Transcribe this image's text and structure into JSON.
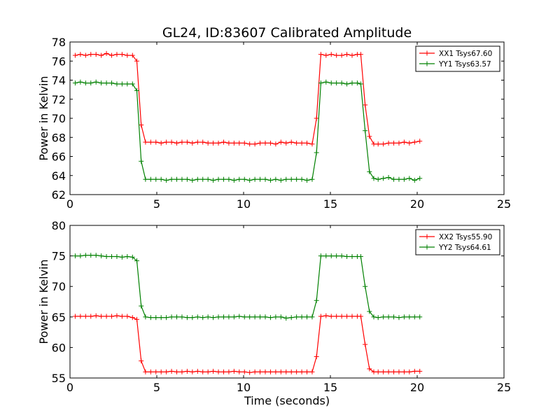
{
  "figure": {
    "title": "GL24, ID:83607 Calibrated Amplitude",
    "xlabel": "Time (seconds)"
  },
  "chart_data": [
    {
      "type": "line",
      "title": "GL24, ID:83607 Calibrated Amplitude",
      "xlabel": "",
      "ylabel": "Power in Kelvin",
      "xlim": [
        0,
        25
      ],
      "ylim": [
        62,
        78
      ],
      "xticks": [
        0,
        5,
        10,
        15,
        20,
        25
      ],
      "yticks": [
        62,
        64,
        66,
        68,
        70,
        72,
        74,
        76,
        78
      ],
      "grid": false,
      "legend_position": "top-right",
      "x": [
        0.3,
        0.6,
        0.9,
        1.2,
        1.5,
        1.8,
        2.1,
        2.4,
        2.7,
        3.0,
        3.3,
        3.6,
        3.85,
        4.1,
        4.35,
        4.65,
        4.95,
        5.25,
        5.55,
        5.85,
        6.15,
        6.45,
        6.75,
        7.05,
        7.35,
        7.65,
        7.95,
        8.25,
        8.55,
        8.85,
        9.15,
        9.45,
        9.75,
        10.05,
        10.35,
        10.65,
        10.95,
        11.25,
        11.55,
        11.85,
        12.15,
        12.45,
        12.75,
        13.05,
        13.35,
        13.65,
        13.95,
        14.2,
        14.45,
        14.75,
        15.05,
        15.35,
        15.65,
        15.95,
        16.25,
        16.55,
        16.75,
        17.0,
        17.25,
        17.5,
        17.75,
        18.05,
        18.35,
        18.65,
        18.95,
        19.25,
        19.55,
        19.85,
        20.15
      ],
      "series": [
        {
          "name": "XX1 Tsys67.60",
          "color": "#ff0000",
          "values": [
            76.6,
            76.7,
            76.6,
            76.7,
            76.7,
            76.6,
            76.8,
            76.6,
            76.7,
            76.7,
            76.6,
            76.6,
            76.0,
            69.3,
            67.5,
            67.5,
            67.5,
            67.4,
            67.5,
            67.5,
            67.4,
            67.5,
            67.5,
            67.4,
            67.5,
            67.5,
            67.4,
            67.4,
            67.4,
            67.5,
            67.4,
            67.4,
            67.4,
            67.4,
            67.3,
            67.3,
            67.4,
            67.4,
            67.4,
            67.3,
            67.5,
            67.4,
            67.5,
            67.4,
            67.4,
            67.4,
            67.3,
            70.0,
            76.7,
            76.6,
            76.7,
            76.6,
            76.6,
            76.7,
            76.6,
            76.7,
            76.7,
            71.4,
            68.1,
            67.3,
            67.3,
            67.3,
            67.4,
            67.4,
            67.4,
            67.5,
            67.4,
            67.5,
            67.6
          ]
        },
        {
          "name": "YY1 Tsys63.57",
          "color": "#008000",
          "values": [
            73.7,
            73.8,
            73.7,
            73.7,
            73.8,
            73.7,
            73.7,
            73.7,
            73.6,
            73.6,
            73.6,
            73.6,
            72.9,
            65.5,
            63.6,
            63.6,
            63.6,
            63.6,
            63.5,
            63.6,
            63.6,
            63.6,
            63.6,
            63.5,
            63.6,
            63.6,
            63.6,
            63.5,
            63.6,
            63.6,
            63.6,
            63.5,
            63.6,
            63.6,
            63.5,
            63.6,
            63.6,
            63.6,
            63.5,
            63.6,
            63.5,
            63.6,
            63.6,
            63.6,
            63.6,
            63.5,
            63.6,
            66.4,
            73.7,
            73.8,
            73.7,
            73.7,
            73.7,
            73.6,
            73.7,
            73.7,
            73.6,
            68.7,
            64.4,
            63.7,
            63.6,
            63.7,
            63.8,
            63.6,
            63.6,
            63.6,
            63.7,
            63.5,
            63.7
          ]
        }
      ]
    },
    {
      "type": "line",
      "title": "",
      "xlabel": "Time (seconds)",
      "ylabel": "Power in Kelvin",
      "xlim": [
        0,
        25
      ],
      "ylim": [
        55,
        80
      ],
      "xticks": [
        0,
        5,
        10,
        15,
        20,
        25
      ],
      "yticks": [
        55,
        60,
        65,
        70,
        75,
        80
      ],
      "grid": false,
      "legend_position": "top-right",
      "x": [
        0.3,
        0.6,
        0.9,
        1.2,
        1.5,
        1.8,
        2.1,
        2.4,
        2.7,
        3.0,
        3.3,
        3.6,
        3.85,
        4.1,
        4.35,
        4.65,
        4.95,
        5.25,
        5.55,
        5.85,
        6.15,
        6.45,
        6.75,
        7.05,
        7.35,
        7.65,
        7.95,
        8.25,
        8.55,
        8.85,
        9.15,
        9.45,
        9.75,
        10.05,
        10.35,
        10.65,
        10.95,
        11.25,
        11.55,
        11.85,
        12.15,
        12.45,
        12.75,
        13.05,
        13.35,
        13.65,
        13.95,
        14.2,
        14.45,
        14.75,
        15.05,
        15.35,
        15.65,
        15.95,
        16.25,
        16.55,
        16.75,
        17.0,
        17.25,
        17.5,
        17.75,
        18.05,
        18.35,
        18.65,
        18.95,
        19.25,
        19.55,
        19.85,
        20.15
      ],
      "series": [
        {
          "name": "XX2 Tsys55.90",
          "color": "#ff0000",
          "values": [
            65.1,
            65.1,
            65.1,
            65.1,
            65.2,
            65.1,
            65.1,
            65.1,
            65.2,
            65.1,
            65.1,
            64.9,
            64.6,
            57.8,
            56.0,
            56.0,
            56.0,
            56.0,
            56.0,
            56.1,
            56.0,
            56.0,
            56.1,
            56.0,
            56.1,
            56.0,
            56.0,
            56.1,
            56.0,
            56.0,
            56.0,
            56.1,
            56.0,
            56.0,
            55.9,
            56.0,
            56.0,
            56.0,
            56.0,
            56.0,
            56.0,
            56.0,
            56.0,
            56.0,
            56.0,
            56.0,
            56.0,
            58.5,
            65.1,
            65.2,
            65.1,
            65.1,
            65.1,
            65.1,
            65.1,
            65.1,
            65.1,
            60.5,
            56.5,
            56.0,
            56.0,
            56.0,
            56.0,
            56.0,
            56.0,
            56.0,
            56.0,
            56.1,
            56.1
          ]
        },
        {
          "name": "YY2 Tsys64.61",
          "color": "#008000",
          "values": [
            75.0,
            75.0,
            75.1,
            75.1,
            75.1,
            75.0,
            74.9,
            74.9,
            74.9,
            74.8,
            74.9,
            74.8,
            74.2,
            66.8,
            65.0,
            64.9,
            64.9,
            64.9,
            64.9,
            65.0,
            65.0,
            65.0,
            64.9,
            64.9,
            65.0,
            64.9,
            65.0,
            64.9,
            65.0,
            65.0,
            65.0,
            65.0,
            65.1,
            65.0,
            65.0,
            65.0,
            65.0,
            65.0,
            64.9,
            65.0,
            65.0,
            64.8,
            64.9,
            65.0,
            65.0,
            65.0,
            65.0,
            67.7,
            75.0,
            75.0,
            75.0,
            75.0,
            75.0,
            74.9,
            74.9,
            74.9,
            74.9,
            70.0,
            65.9,
            65.0,
            64.9,
            65.0,
            65.0,
            65.0,
            64.9,
            65.0,
            65.0,
            65.0,
            65.0
          ]
        }
      ]
    }
  ]
}
